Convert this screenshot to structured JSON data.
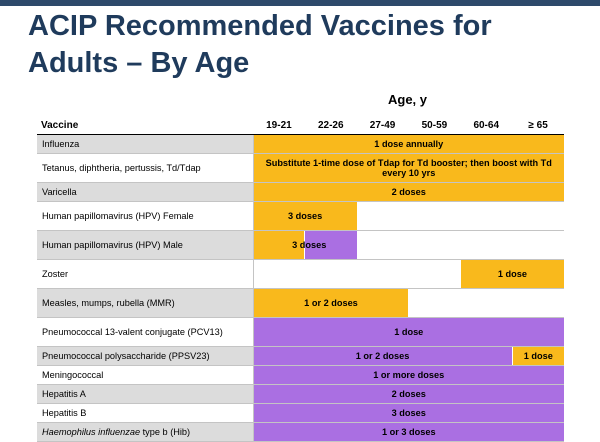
{
  "title_line1": "ACIP Recommended Vaccines for",
  "title_line2": "Adults – By Age",
  "colors": {
    "recommended_all": "#f9b91c",
    "risk_based": "#aa6fe2",
    "title": "#1f3b5c"
  },
  "table": {
    "age_header": "Age, y",
    "vaccine_header": "Vaccine",
    "age_groups": [
      "19-21",
      "22-26",
      "27-49",
      "50-59",
      "60-64",
      "≥ 65"
    ],
    "rows": [
      {
        "name": "Influenza",
        "bar1": "1 dose annually"
      },
      {
        "name": "Tetanus, diphtheria, pertussis, Td/Tdap",
        "bar1": "Substitute 1-time dose of Tdap for Td booster; then boost with Td every 10 yrs"
      },
      {
        "name": "Varicella",
        "bar1": "2 doses"
      },
      {
        "name": "Human papillomavirus (HPV) Female",
        "bar1": "3 doses"
      },
      {
        "name": "Human papillomavirus (HPV) Male",
        "bar1": "3 doses"
      },
      {
        "name": "Zoster",
        "bar1": "1 dose"
      },
      {
        "name": "Measles, mumps, rubella (MMR)",
        "bar1": "1 or 2 doses"
      },
      {
        "name": "Pneumococcal 13-valent conjugate (PCV13)",
        "bar1": "1 dose"
      },
      {
        "name": "Pneumococcal polysaccharide (PPSV23)",
        "bar1": "1 or 2 doses",
        "bar2": "1 dose"
      },
      {
        "name": "Meningococcal",
        "bar1": "1 or more doses"
      },
      {
        "name": "Hepatitis A",
        "bar1": "2 doses"
      },
      {
        "name": "Hepatitis B",
        "bar1": "3 doses"
      },
      {
        "name_italic": "Haemophilus influenzae",
        "name_rest": " type b (Hib)",
        "bar1": "1 or 3 doses"
      }
    ]
  }
}
